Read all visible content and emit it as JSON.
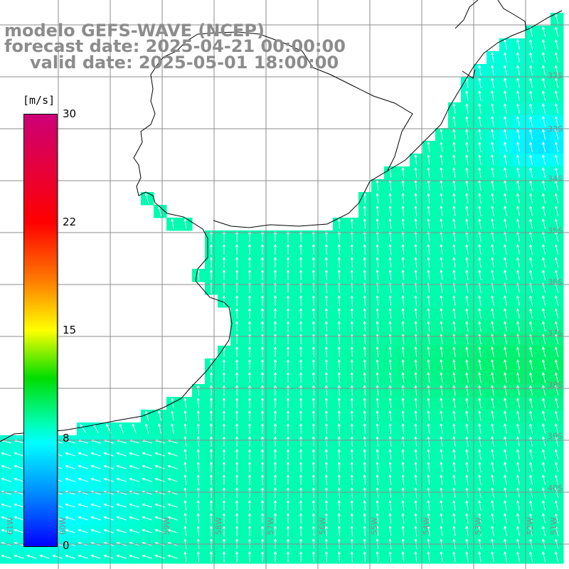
{
  "title": {
    "line1": "modelo GEFS-WAVE (NCEP)",
    "line2": "forecast date: 2025-04-21 00:00:00",
    "line3": "valid date: 2025-05-01 18:00:00"
  },
  "colorbar": {
    "unit": "[m/s]",
    "ticks": [
      "30",
      "22",
      "15",
      "8",
      "0"
    ],
    "range": [
      0,
      30
    ],
    "stops": [
      "#0000ff",
      "#0088ff",
      "#00ffff",
      "#00ffbb",
      "#00dd00",
      "#ffff00",
      "#ff7700",
      "#ff0000",
      "#cc0077"
    ]
  },
  "map": {
    "lat_labels": [
      "32S",
      "33S",
      "34S",
      "35S",
      "36S",
      "37S",
      "38S",
      "39S",
      "40S"
    ],
    "lon_labels": [
      "61W",
      "60W",
      "59W",
      "58W",
      "57W",
      "56W",
      "55W",
      "54W",
      "53W",
      "52W",
      "51W"
    ],
    "colors": {
      "land": "#ffffff",
      "grid": "#8c8c8c",
      "coast": "#000000",
      "vector": "#ffffff"
    }
  }
}
